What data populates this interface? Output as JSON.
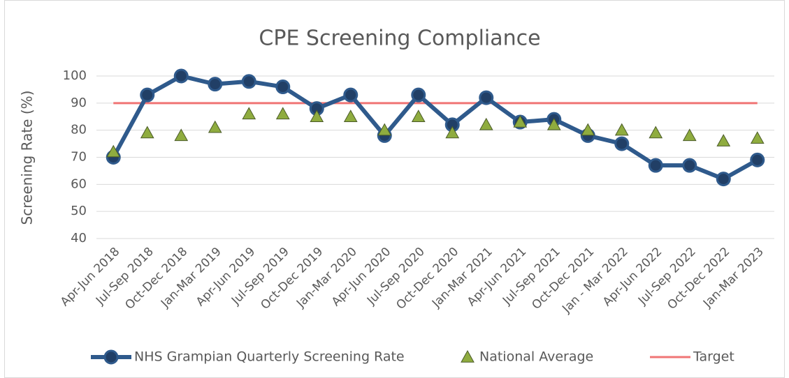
{
  "chart_data": {
    "type": "line",
    "title": "CPE Screening Compliance",
    "y_label": "Screening Rate (%)",
    "categories": [
      "Apr-Jun 2018",
      "Jul-Sep 2018",
      "Oct-Dec 2018",
      "Jan-Mar 2019",
      "Apr-Jun 2019",
      "Jul-Sep 2019",
      "Oct-Dec 2019",
      "Jan-Mar 2020",
      "Apr-Jun 2020",
      "Jul-Sep 2020",
      "Oct-Dec 2020",
      "Jan-Mar 2021",
      "Apr-Jun 2021",
      "Jul-Sep 2021",
      "Oct-Dec 2021",
      "Jan - Mar 2022",
      "Apr-Jun 2022",
      "Jul-Sep 2022",
      "Oct-Dec 2022",
      "Jan-Mar 2023"
    ],
    "series": [
      {
        "name": "NHS Grampian Quarterly Screening Rate",
        "color": "#2f5a8c",
        "marker": "circle",
        "line": true,
        "values": [
          70,
          93,
          100,
          97,
          98,
          96,
          88,
          93,
          78,
          93,
          82,
          92,
          83,
          84,
          78,
          75,
          67,
          67,
          62,
          69
        ]
      },
      {
        "name": "National Average",
        "color": "#8fac3f",
        "marker": "triangle",
        "line": false,
        "values": [
          72,
          79,
          78,
          81,
          86,
          86,
          85,
          85,
          80,
          85,
          79,
          82,
          83,
          82,
          80,
          80,
          79,
          78,
          76,
          77
        ]
      },
      {
        "name": "Target",
        "color": "#f07575",
        "marker": "none",
        "line": true,
        "values": [
          90,
          90,
          90,
          90,
          90,
          90,
          90,
          90,
          90,
          90,
          90,
          90,
          90,
          90,
          90,
          90,
          90,
          90,
          90,
          90
        ]
      }
    ],
    "ylim": [
      40,
      100
    ],
    "yticks": [
      40,
      50,
      60,
      70,
      80,
      90,
      100
    ],
    "grid": true,
    "legend": "bottom"
  }
}
